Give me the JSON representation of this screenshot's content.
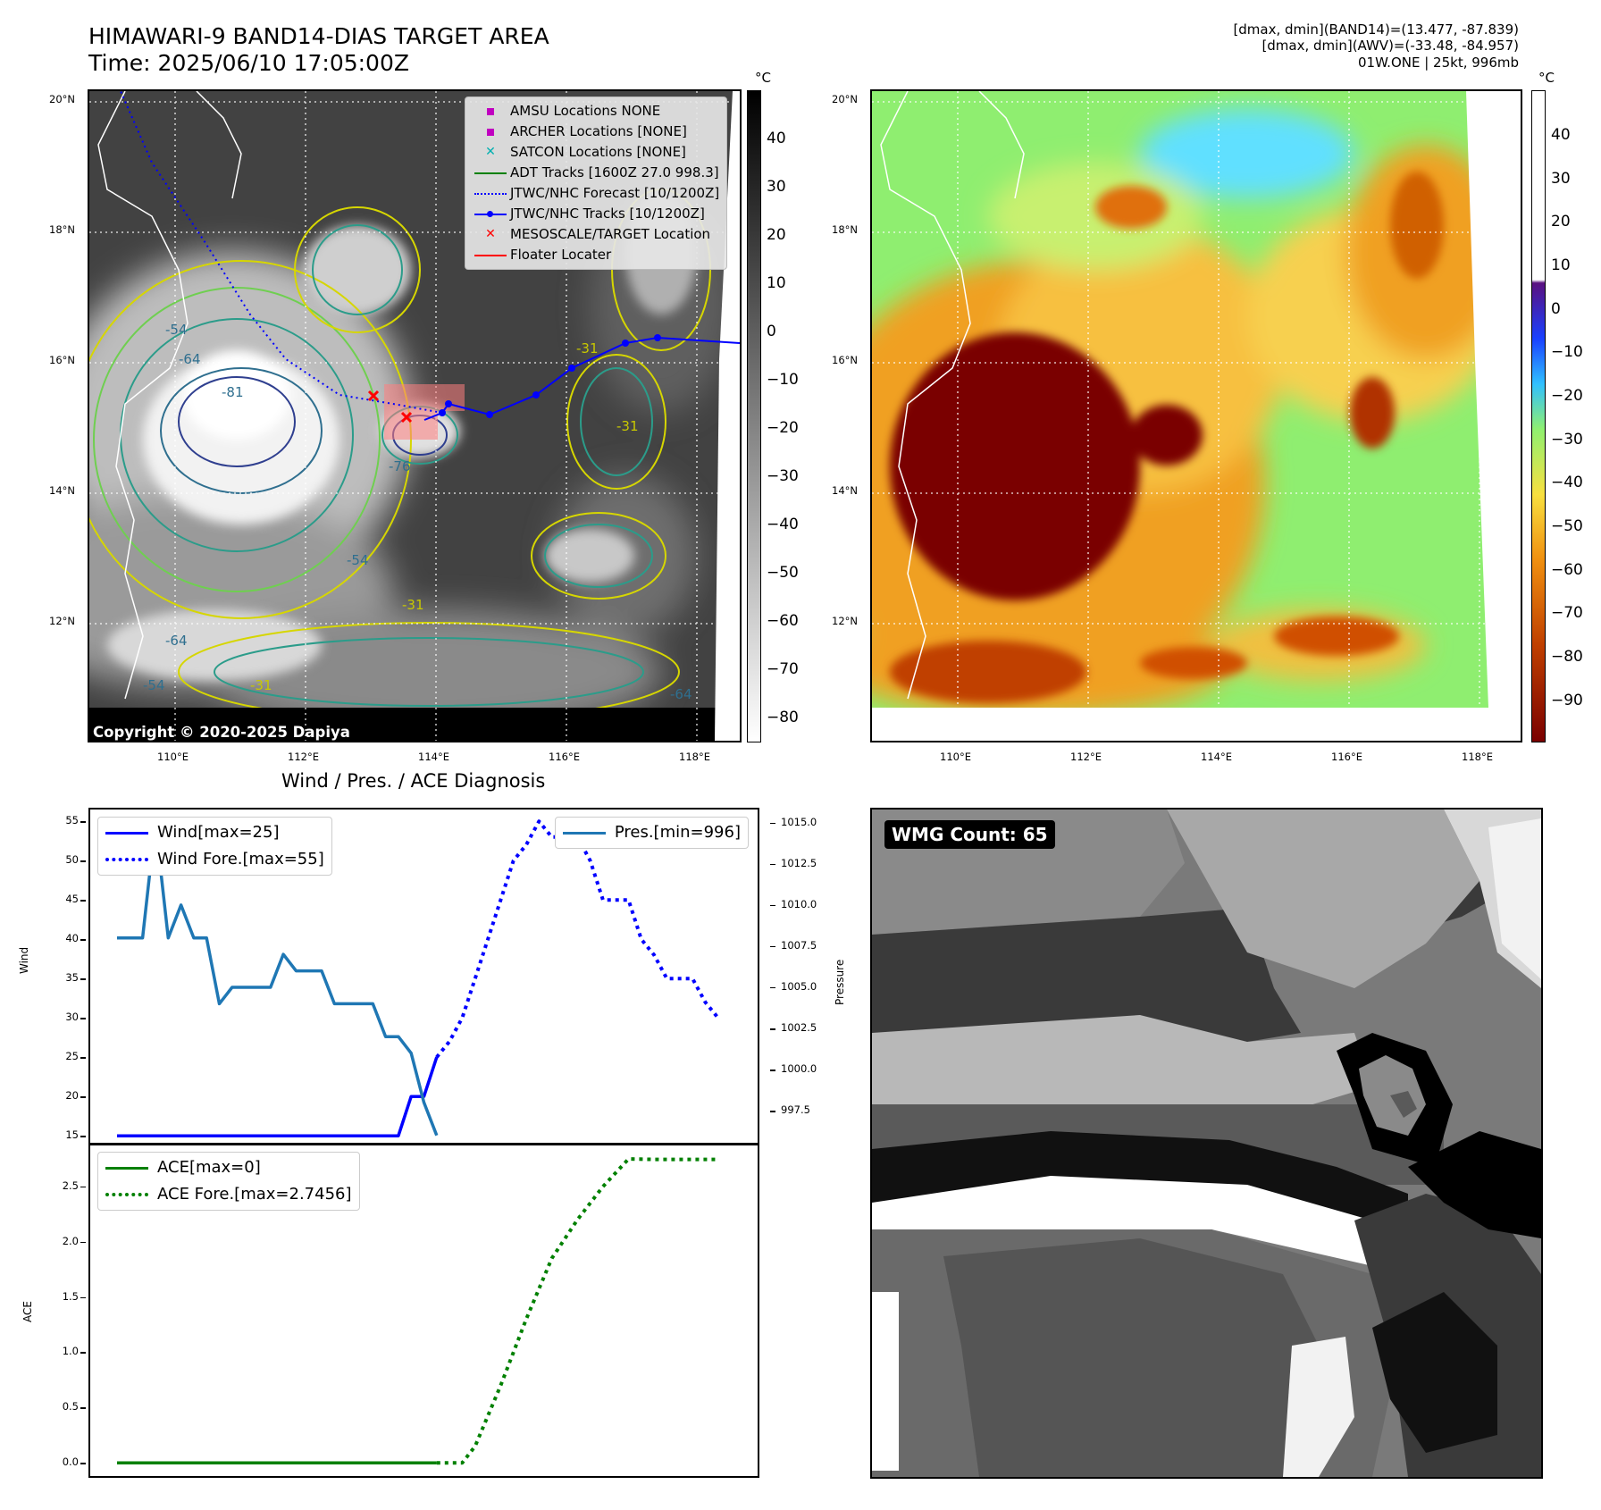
{
  "header": {
    "title_line1": "HIMAWARI-9 BAND14-DIAS TARGET AREA",
    "title_line2": "Time: 2025/06/10 17:05:00Z",
    "info_line1": "[dmax, dmin](BAND14)=(13.477, -87.839)",
    "info_line2": "[dmax, dmin](AWV)=(-33.48, -84.957)",
    "info_line3": "01W.ONE | 25kt, 996mb"
  },
  "colors": {
    "wind": "#0000ff",
    "pressure": "#1f77b4",
    "ace": "#008000",
    "jtwc_track": "#0000ff",
    "target": "#ff0000"
  },
  "map1": {
    "unit": "°C",
    "lat_ticks": [
      "20°N",
      "18°N",
      "16°N",
      "14°N",
      "12°N"
    ],
    "lon_ticks": [
      "110°E",
      "112°E",
      "114°E",
      "116°E",
      "118°E"
    ],
    "colorbar_ticks": [
      "40",
      "30",
      "20",
      "10",
      "0",
      "−10",
      "−20",
      "−30",
      "−40",
      "−50",
      "−60",
      "−70",
      "−80"
    ],
    "copyright": "Copyright © 2020-2025 Dapiya",
    "legend": [
      {
        "label": "AMSU Locations NONE",
        "symbol": "square",
        "color": "#c000c0"
      },
      {
        "label": "ARCHER Locations [NONE]",
        "symbol": "square",
        "color": "#c000c0"
      },
      {
        "label": "SATCON Locations [NONE]",
        "symbol": "x",
        "color": "#00b0b0"
      },
      {
        "label": "ADT Tracks [1600Z 27.0 998.3]",
        "symbol": "line",
        "color": "#008000"
      },
      {
        "label": "JTWC/NHC Forecast [10/1200Z]",
        "symbol": "dotted",
        "color": "#0000ff"
      },
      {
        "label": "JTWC/NHC Tracks [10/1200Z]",
        "symbol": "line-dot",
        "color": "#0000ff"
      },
      {
        "label": "MESOSCALE/TARGET Location",
        "symbol": "x",
        "color": "#ff0000"
      },
      {
        "label": "Floater Locater",
        "symbol": "line",
        "color": "#ff0000"
      }
    ],
    "contour_labels": [
      "-54",
      "-64",
      "-76",
      "-81",
      "-31",
      "-54",
      "-64",
      "-31",
      "-31",
      "-64",
      "-54",
      "-31"
    ]
  },
  "map2": {
    "unit": "°C",
    "lat_ticks": [
      "20°N",
      "18°N",
      "16°N",
      "14°N",
      "12°N"
    ],
    "lon_ticks": [
      "110°E",
      "112°E",
      "114°E",
      "116°E",
      "118°E"
    ],
    "colorbar_ticks": [
      "40",
      "30",
      "20",
      "10",
      "0",
      "−10",
      "−20",
      "−30",
      "−40",
      "−50",
      "−60",
      "−70",
      "−80",
      "−90"
    ]
  },
  "diag": {
    "title": "Wind / Pres. / ACE Diagnosis",
    "wind_ylabel": "Wind",
    "pres_ylabel": "Pressure",
    "ace_ylabel": "ACE",
    "legend_wind": "Wind[max=25]",
    "legend_wind_fore": "Wind Fore.[max=55]",
    "legend_pres": "Pres.[min=996]",
    "legend_ace": "ACE[max=0]",
    "legend_ace_fore": "ACE Fore.[max=2.7456]"
  },
  "chart_data": [
    {
      "type": "line",
      "title": "Wind / Pres. / ACE Diagnosis",
      "ylabel": "Wind",
      "ylim": [
        14,
        56.5
      ],
      "yticks": [
        "55",
        "50",
        "45",
        "40",
        "35",
        "30",
        "25",
        "20",
        "15"
      ],
      "series": [
        {
          "name": "Wind[max=25]",
          "style": "solid",
          "color": "#0000ff",
          "x": [
            0,
            1,
            2,
            3,
            4,
            5,
            6,
            7,
            8,
            9,
            10,
            11,
            12,
            13,
            14,
            15,
            16,
            17,
            18,
            19,
            20,
            21,
            22,
            23,
            24,
            25
          ],
          "values": [
            15,
            15,
            15,
            15,
            15,
            15,
            15,
            15,
            15,
            15,
            15,
            15,
            15,
            15,
            15,
            15,
            15,
            15,
            15,
            15,
            15,
            15,
            15,
            20,
            20,
            25
          ]
        },
        {
          "name": "Wind Fore.[max=55]",
          "style": "dotted",
          "color": "#0000ff",
          "x": [
            25,
            26,
            27,
            28,
            29,
            30,
            31,
            32,
            33,
            34,
            35,
            36,
            37,
            38,
            39,
            40,
            41,
            42,
            43,
            44,
            45,
            46,
            47
          ],
          "values": [
            25,
            27,
            30,
            35,
            40,
            45,
            50,
            52,
            55,
            53,
            53,
            53,
            50,
            45,
            45,
            45,
            40,
            38,
            35,
            35,
            35,
            32,
            30
          ]
        }
      ]
    },
    {
      "type": "line",
      "ylabel": "Pressure",
      "ylim": [
        995.5,
        1015.8
      ],
      "yticks": [
        "1015.0",
        "1012.5",
        "1010.0",
        "1007.5",
        "1005.0",
        "1002.5",
        "1000.0",
        "997.5"
      ],
      "series": [
        {
          "name": "Pres.[min=996]",
          "style": "solid",
          "color": "#1f77b4",
          "x": [
            0,
            2,
            3,
            4,
            5,
            6,
            7,
            8,
            9,
            10,
            11,
            12,
            13,
            14,
            15,
            16,
            17,
            18,
            19,
            20,
            21,
            22,
            23,
            24,
            25
          ],
          "values": [
            1008,
            1008,
            1015,
            1008,
            1010,
            1008,
            1008,
            1004,
            1005,
            1005,
            1005,
            1005,
            1007,
            1006,
            1006,
            1006,
            1004,
            1004,
            1004,
            1004,
            1002,
            1002,
            1001,
            998,
            996
          ]
        }
      ]
    },
    {
      "type": "line",
      "ylabel": "ACE",
      "ylim": [
        -0.12,
        2.88
      ],
      "yticks": [
        "2.5",
        "2.0",
        "1.5",
        "1.0",
        "0.5",
        "0.0"
      ],
      "series": [
        {
          "name": "ACE[max=0]",
          "style": "solid",
          "color": "#008000",
          "x": [
            0,
            25
          ],
          "values": [
            0,
            0
          ]
        },
        {
          "name": "ACE Fore.[max=2.7456]",
          "style": "dotted",
          "color": "#008000",
          "x": [
            25,
            27,
            28,
            30,
            32,
            34,
            36,
            38,
            40,
            42,
            44,
            47
          ],
          "values": [
            0,
            0,
            0.15,
            0.7,
            1.3,
            1.85,
            2.2,
            2.5,
            2.75,
            2.7456,
            2.7456,
            2.7456
          ]
        }
      ]
    }
  ],
  "wmg": {
    "label": "WMG Count: 65"
  }
}
